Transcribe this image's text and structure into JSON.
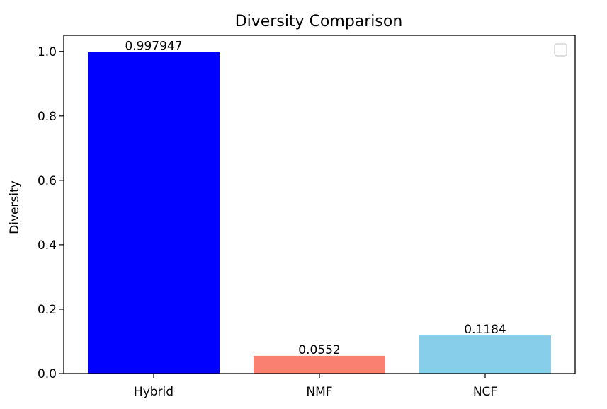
{
  "chart_data": {
    "type": "bar",
    "title": "Diversity Comparison",
    "xlabel": "",
    "ylabel": "Diversity",
    "categories": [
      "Hybrid",
      "NMF",
      "NCF"
    ],
    "values": [
      0.997947,
      0.0552,
      0.1184
    ],
    "data_labels": [
      "0.997947",
      "0.0552",
      "0.1184"
    ],
    "colors": [
      "#0000ff",
      "#fa8072",
      "#87ceeb"
    ],
    "ylim": [
      0,
      1.05
    ],
    "yticks": [
      0.0,
      0.2,
      0.4,
      0.6,
      0.8,
      1.0
    ],
    "ytick_labels": [
      "0.0",
      "0.2",
      "0.4",
      "0.6",
      "0.8",
      "1.0"
    ],
    "grid": false,
    "legend": {
      "placement": "top-right",
      "entries": []
    }
  }
}
